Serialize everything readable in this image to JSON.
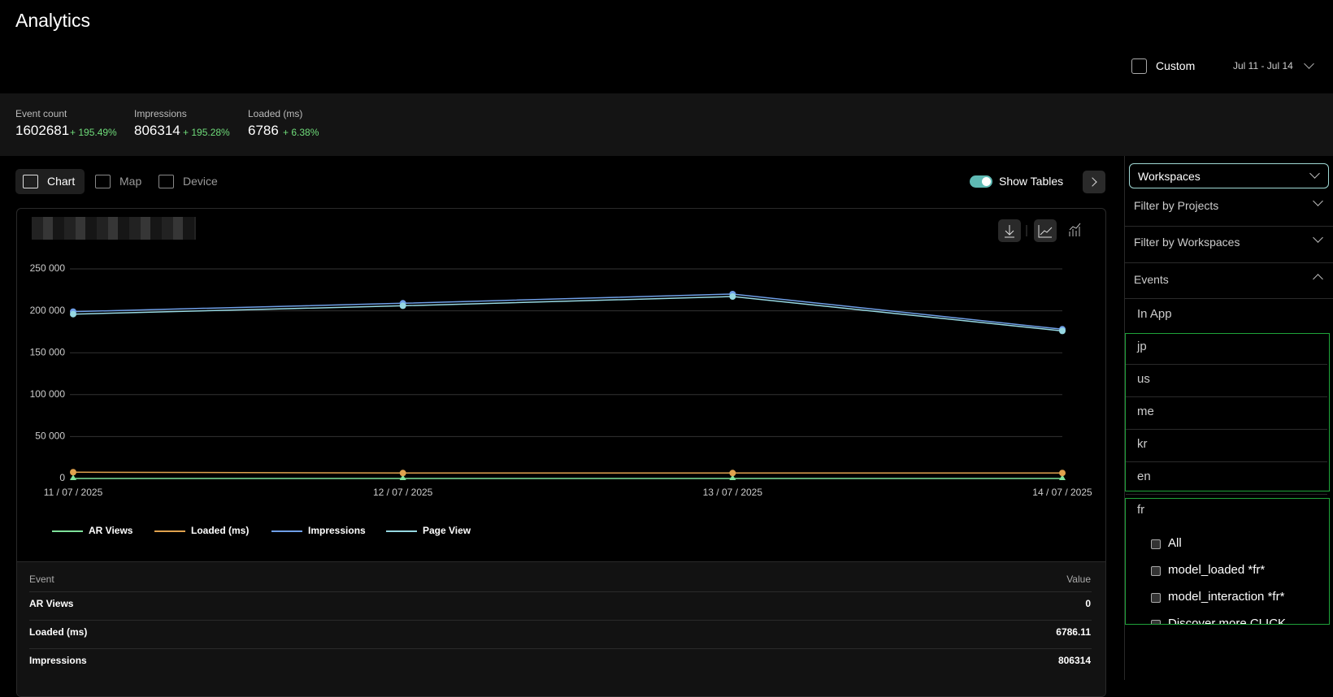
{
  "header": {
    "title": "Analytics",
    "date_mode": "Custom",
    "date_range": "Jul 11 - Jul 14"
  },
  "stats": [
    {
      "label": "Event count",
      "value": "1602681",
      "change": "+ 195.49%"
    },
    {
      "label": "Impressions",
      "value": "806314",
      "change": "+ 195.28%"
    },
    {
      "label": "Loaded (ms)",
      "value": "6786",
      "change": "+ 6.38%"
    }
  ],
  "tabs": [
    "Chart",
    "Map",
    "Device"
  ],
  "show_tables": "Show Tables",
  "chart_data": {
    "type": "line",
    "categories": [
      "11 / 07 / 2025",
      "12 / 07 / 2025",
      "13 / 07 / 2025",
      "14 / 07 / 2025"
    ],
    "series": [
      {
        "name": "AR Views",
        "color": "#7ee29a",
        "values": [
          0,
          0,
          0,
          0
        ]
      },
      {
        "name": "Loaded (ms)",
        "color": "#e0a24e",
        "values": [
          7500,
          6500,
          6500,
          6600
        ]
      },
      {
        "name": "Impressions",
        "color": "#6f9fe8",
        "values": [
          199000,
          209000,
          220000,
          178000
        ]
      },
      {
        "name": "Page View",
        "color": "#96d8e2",
        "values": [
          196000,
          206000,
          217000,
          176000
        ]
      }
    ],
    "ylim": [
      0,
      250000
    ],
    "yticks": [
      0,
      {
        "value": 50000,
        "label": "50 000"
      },
      {
        "value": 100000,
        "label": "100 000"
      },
      {
        "value": 150000,
        "label": "150 000"
      },
      {
        "value": 200000,
        "label": "200 000"
      },
      {
        "value": 250000,
        "label": "250 000"
      }
    ],
    "grid": true
  },
  "table": {
    "headers": [
      "Event",
      "Value"
    ],
    "rows": [
      [
        "AR Views",
        "0"
      ],
      [
        "Loaded (ms)",
        "6786.11"
      ],
      [
        "Impressions",
        "806314"
      ]
    ]
  },
  "sidebar": {
    "select": "Workspaces",
    "filters": [
      "Filter by Projects",
      "Filter by Workspaces"
    ],
    "events": "Events",
    "groups": [
      "In App",
      "jp",
      "us",
      "me",
      "kr",
      "en",
      "fr"
    ],
    "options": [
      "All",
      "model_loaded *fr*",
      "model_interaction *fr*",
      "Discover more CLICK"
    ]
  }
}
